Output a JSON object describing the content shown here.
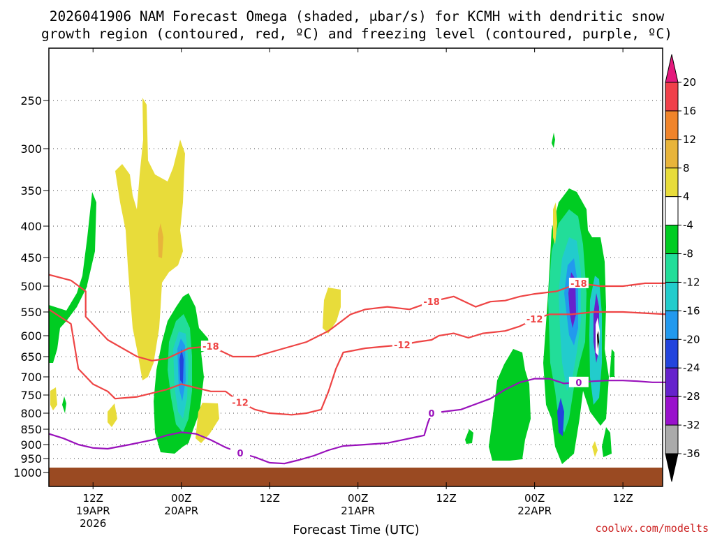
{
  "chart_data": {
    "type": "contour",
    "title_line1": "2026041906 NAM Forecast Omega (shaded, μbar/s) for KCMH with dendritic snow",
    "title_line2": "growth region (contoured, red, ºC) and freezing level (contoured, purple, ºC)",
    "xlabel": "Forecast Time (UTC)",
    "credit": "coolwx.com/modelts",
    "x_range_hours": [
      0,
      84
    ],
    "y_range_hpa": [
      1040,
      180
    ],
    "pressure_levels": [
      250,
      300,
      350,
      400,
      450,
      500,
      550,
      600,
      650,
      700,
      750,
      800,
      850,
      900,
      950,
      1000
    ],
    "x_ticks": [
      {
        "hour": 6,
        "line1": "12Z",
        "line2": "19APR",
        "line3": "2026"
      },
      {
        "hour": 18,
        "line1": "00Z",
        "line2": "20APR",
        "line3": ""
      },
      {
        "hour": 30,
        "line1": "12Z",
        "line2": "",
        "line3": ""
      },
      {
        "hour": 42,
        "line1": "00Z",
        "line2": "21APR",
        "line3": ""
      },
      {
        "hour": 54,
        "line1": "12Z",
        "line2": "",
        "line3": ""
      },
      {
        "hour": 66,
        "line1": "00Z",
        "line2": "22APR",
        "line3": ""
      },
      {
        "hour": 78,
        "line1": "12Z",
        "line2": "",
        "line3": ""
      }
    ],
    "colorbar": {
      "labels": [
        "20",
        "16",
        "12",
        "8",
        "4",
        "-4",
        "-8",
        "-12",
        "-16",
        "-20",
        "-24",
        "-28",
        "-32",
        "-36"
      ],
      "colors": [
        "#e4197c",
        "#f0404a",
        "#f0842a",
        "#e8b43a",
        "#e8dc3a",
        "#ffffff",
        "#00cc22",
        "#22dd99",
        "#22cccc",
        "#2299ee",
        "#2244dd",
        "#6622cc",
        "#9911cc",
        "#aaaaaa",
        "#000000"
      ]
    },
    "contours": [
      {
        "name": "dgz-m18",
        "label": "-18",
        "color": "#ee4444",
        "points": [
          [
            0,
            480
          ],
          [
            3,
            490
          ],
          [
            5,
            510
          ],
          [
            5,
            560
          ],
          [
            8,
            610
          ],
          [
            12,
            650
          ],
          [
            14,
            660
          ],
          [
            16,
            655
          ],
          [
            19,
            630
          ],
          [
            22,
            625
          ],
          [
            25,
            650
          ],
          [
            28,
            650
          ],
          [
            31,
            635
          ],
          [
            35,
            615
          ],
          [
            38,
            590
          ],
          [
            41,
            555
          ],
          [
            43,
            545
          ],
          [
            46,
            540
          ],
          [
            49,
            545
          ],
          [
            52,
            530
          ],
          [
            55,
            520
          ],
          [
            58,
            540
          ],
          [
            60,
            530
          ],
          [
            62,
            528
          ],
          [
            64,
            520
          ],
          [
            66,
            515
          ],
          [
            69,
            510
          ],
          [
            72,
            495
          ],
          [
            75,
            500
          ],
          [
            78,
            500
          ],
          [
            81,
            495
          ],
          [
            84,
            495
          ]
        ]
      },
      {
        "name": "dgz-m12",
        "label": "-12",
        "color": "#ee4444",
        "points": [
          [
            0,
            545
          ],
          [
            3,
            575
          ],
          [
            4,
            680
          ],
          [
            6,
            720
          ],
          [
            8,
            740
          ],
          [
            9,
            760
          ],
          [
            12,
            755
          ],
          [
            16,
            735
          ],
          [
            18,
            720
          ],
          [
            22,
            740
          ],
          [
            24,
            740
          ],
          [
            26,
            770
          ],
          [
            28,
            790
          ],
          [
            30,
            800
          ],
          [
            33,
            805
          ],
          [
            35,
            800
          ],
          [
            37,
            790
          ],
          [
            38,
            740
          ],
          [
            39,
            680
          ],
          [
            40,
            640
          ],
          [
            43,
            630
          ],
          [
            46,
            625
          ],
          [
            48,
            622
          ],
          [
            50,
            615
          ],
          [
            52,
            610
          ],
          [
            53,
            600
          ],
          [
            55,
            595
          ],
          [
            57,
            605
          ],
          [
            59,
            595
          ],
          [
            62,
            590
          ],
          [
            64,
            580
          ],
          [
            66,
            565
          ],
          [
            68,
            555
          ],
          [
            71,
            555
          ],
          [
            74,
            550
          ],
          [
            78,
            550
          ],
          [
            84,
            555
          ]
        ]
      },
      {
        "name": "frz-0",
        "label": "0",
        "color": "#9911bb",
        "points": [
          [
            0,
            865
          ],
          [
            2,
            880
          ],
          [
            4,
            900
          ],
          [
            6,
            912
          ],
          [
            8,
            915
          ],
          [
            11,
            900
          ],
          [
            14,
            885
          ],
          [
            16,
            870
          ],
          [
            18,
            860
          ],
          [
            20,
            865
          ],
          [
            22,
            885
          ],
          [
            24,
            910
          ],
          [
            26,
            930
          ],
          [
            28,
            945
          ],
          [
            30,
            965
          ],
          [
            32,
            968
          ],
          [
            34,
            955
          ],
          [
            36,
            940
          ],
          [
            38,
            920
          ],
          [
            40,
            905
          ],
          [
            43,
            900
          ],
          [
            46,
            895
          ],
          [
            48,
            885
          ],
          [
            50,
            875
          ],
          [
            51,
            870
          ],
          [
            51.5,
            830
          ],
          [
            52,
            800
          ],
          [
            54,
            795
          ],
          [
            56,
            790
          ],
          [
            58,
            775
          ],
          [
            60,
            760
          ],
          [
            62,
            735
          ],
          [
            64,
            715
          ],
          [
            66,
            705
          ],
          [
            68,
            705
          ],
          [
            70,
            718
          ],
          [
            72,
            715
          ],
          [
            74,
            712
          ],
          [
            76,
            710
          ],
          [
            78,
            710
          ],
          [
            80,
            712
          ],
          [
            82,
            715
          ],
          [
            84,
            715
          ]
        ]
      }
    ]
  }
}
